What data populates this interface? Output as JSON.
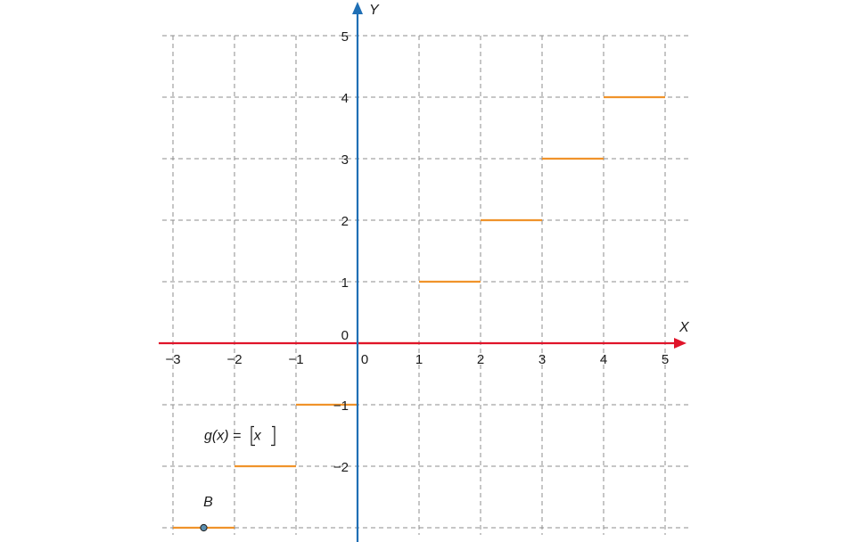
{
  "chart_data": {
    "type": "line",
    "title": "",
    "xlabel": "X",
    "ylabel": "Y",
    "xlim": [
      -3,
      5
    ],
    "ylim": [
      -3,
      5
    ],
    "grid": true,
    "x_ticks": [
      "−3",
      "−2",
      "−1",
      "0",
      "1",
      "2",
      "3",
      "4",
      "5"
    ],
    "y_ticks": [
      "5",
      "4",
      "3",
      "2",
      "1",
      "0",
      "−1",
      "−2"
    ],
    "series": [
      {
        "segments": [
          {
            "x": [
              -3,
              -2
            ],
            "y": -3
          },
          {
            "x": [
              -2,
              -1
            ],
            "y": -2
          },
          {
            "x": [
              -1,
              0
            ],
            "y": -1
          },
          {
            "x": [
              0,
              1
            ],
            "y": 0
          },
          {
            "x": [
              1,
              2
            ],
            "y": 1
          },
          {
            "x": [
              2,
              3
            ],
            "y": 2
          },
          {
            "x": [
              3,
              4
            ],
            "y": 3
          },
          {
            "x": [
              4,
              5
            ],
            "y": 4
          }
        ]
      }
    ],
    "function_label": {
      "prefix": "g(x) = ",
      "argument": "x",
      "x": -3,
      "y": -1.5
    },
    "points": [
      {
        "label": "B",
        "x": -2.5,
        "y": -3
      }
    ],
    "colors": {
      "x_axis": "#e0142a",
      "y_axis": "#1f6fb5",
      "step": "#f0932b",
      "point_fill": "#5b8fb0",
      "grid": "#8c8c8c"
    }
  }
}
